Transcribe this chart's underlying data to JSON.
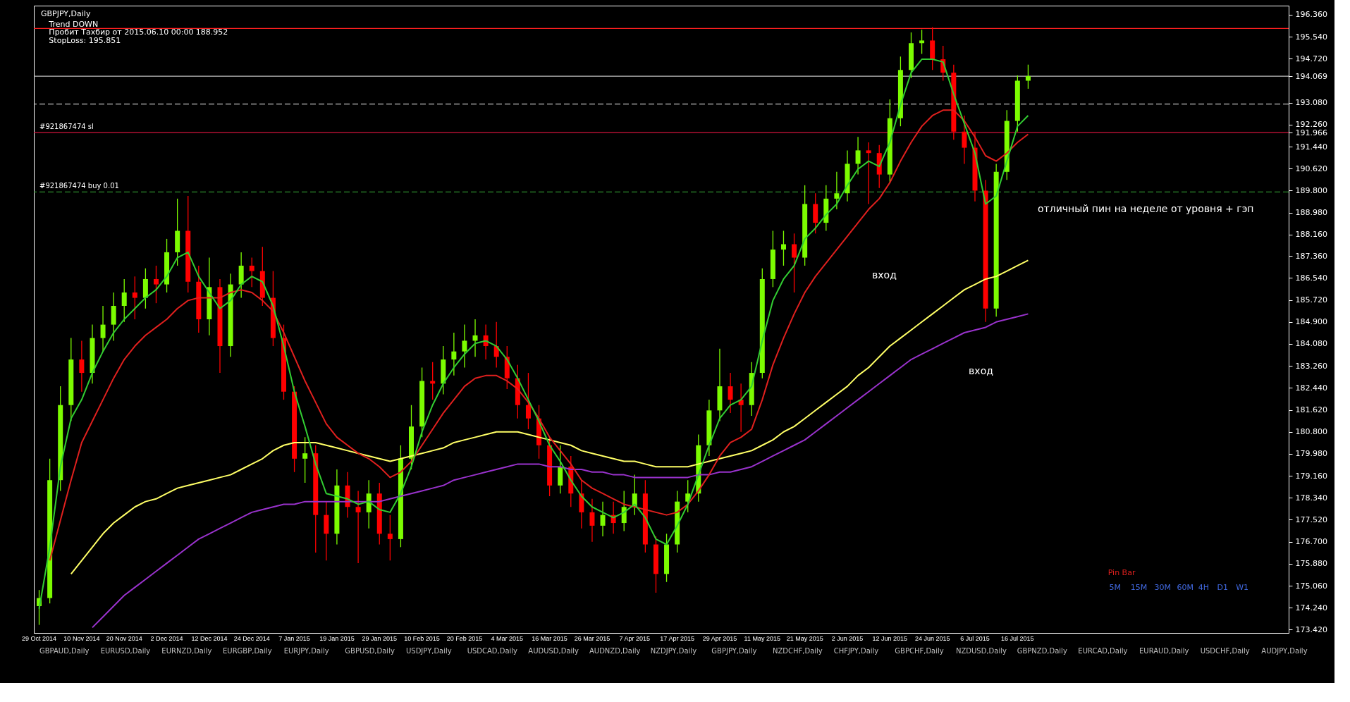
{
  "chart_data": {
    "type": "candlestick",
    "title": "GBPJPY,Daily",
    "categories": [
      "29 Oct 2014",
      null,
      null,
      null,
      "10 Nov 2014",
      null,
      null,
      null,
      "20 Nov 2014",
      null,
      null,
      null,
      "2 Dec 2014",
      null,
      null,
      null,
      "12 Dec 2014",
      null,
      null,
      null,
      "24 Dec 2014",
      null,
      null,
      null,
      "7 Jan 2015",
      null,
      null,
      null,
      "19 Jan 2015",
      null,
      null,
      null,
      "29 Jan 2015",
      null,
      null,
      null,
      "10 Feb 2015",
      null,
      null,
      null,
      "20 Feb 2015",
      null,
      null,
      null,
      "4 Mar 2015",
      null,
      null,
      null,
      "16 Mar 2015",
      null,
      null,
      null,
      "26 Mar 2015",
      null,
      null,
      null,
      "7 Apr 2015",
      null,
      null,
      null,
      "17 Apr 2015",
      null,
      null,
      null,
      "29 Apr 2015",
      null,
      null,
      null,
      "11 May 2015",
      null,
      null,
      null,
      "21 May 2015",
      null,
      null,
      null,
      "2 Jun 2015",
      null,
      null,
      null,
      "12 Jun 2015",
      null,
      null,
      null,
      "24 Jun 2015",
      null,
      null,
      null,
      "6 Jul 2015",
      null,
      null,
      null,
      "16 Jul 2015",
      null
    ],
    "ohlc": [
      [
        174.3,
        174.9,
        173.6,
        174.6
      ],
      [
        174.6,
        179.8,
        174.4,
        179.0
      ],
      [
        179.0,
        182.5,
        178.6,
        181.8
      ],
      [
        181.8,
        184.3,
        181.2,
        183.5
      ],
      [
        183.5,
        184.2,
        182.3,
        183.0
      ],
      [
        183.0,
        184.8,
        182.6,
        184.3
      ],
      [
        184.3,
        185.5,
        183.8,
        184.8
      ],
      [
        184.8,
        186.0,
        184.2,
        185.5
      ],
      [
        185.5,
        186.5,
        184.9,
        186.0
      ],
      [
        186.0,
        186.6,
        185.0,
        185.8
      ],
      [
        185.8,
        186.9,
        185.4,
        186.5
      ],
      [
        186.5,
        187.0,
        185.6,
        186.3
      ],
      [
        186.3,
        188.0,
        186.0,
        187.5
      ],
      [
        187.5,
        189.5,
        187.0,
        188.3
      ],
      [
        188.3,
        189.6,
        186.0,
        186.4
      ],
      [
        186.4,
        187.0,
        184.5,
        185.0
      ],
      [
        185.0,
        187.3,
        184.4,
        186.2
      ],
      [
        186.2,
        186.5,
        183.0,
        184.0
      ],
      [
        184.0,
        186.7,
        183.6,
        186.3
      ],
      [
        186.3,
        187.5,
        185.8,
        187.0
      ],
      [
        187.0,
        187.3,
        186.2,
        186.8
      ],
      [
        186.8,
        187.7,
        185.5,
        185.8
      ],
      [
        185.8,
        186.8,
        184.0,
        184.3
      ],
      [
        184.3,
        184.8,
        182.0,
        182.3
      ],
      [
        182.3,
        182.5,
        179.3,
        179.8
      ],
      [
        179.8,
        180.6,
        178.9,
        180.0
      ],
      [
        180.0,
        180.3,
        176.3,
        177.7
      ],
      [
        177.7,
        178.2,
        176.0,
        177.0
      ],
      [
        177.0,
        179.4,
        176.6,
        178.8
      ],
      [
        178.8,
        179.3,
        177.6,
        178.0
      ],
      [
        178.0,
        178.6,
        175.9,
        177.8
      ],
      [
        177.8,
        179.0,
        177.2,
        178.5
      ],
      [
        178.5,
        178.9,
        176.6,
        177.0
      ],
      [
        177.0,
        177.7,
        176.0,
        176.8
      ],
      [
        176.8,
        180.3,
        176.5,
        179.8
      ],
      [
        179.8,
        181.8,
        179.4,
        181.0
      ],
      [
        181.0,
        183.2,
        180.6,
        182.7
      ],
      [
        182.7,
        183.4,
        182.0,
        182.6
      ],
      [
        182.6,
        184.0,
        182.2,
        183.5
      ],
      [
        183.5,
        184.5,
        182.9,
        183.8
      ],
      [
        183.8,
        184.8,
        183.2,
        184.2
      ],
      [
        184.2,
        185.0,
        183.6,
        184.4
      ],
      [
        184.4,
        184.8,
        183.5,
        184.0
      ],
      [
        184.0,
        184.9,
        183.2,
        183.6
      ],
      [
        183.6,
        184.0,
        182.4,
        182.8
      ],
      [
        182.8,
        183.3,
        181.3,
        181.8
      ],
      [
        181.8,
        183.0,
        180.9,
        181.3
      ],
      [
        181.3,
        181.8,
        179.8,
        180.3
      ],
      [
        180.3,
        180.6,
        178.4,
        178.8
      ],
      [
        178.8,
        180.3,
        178.5,
        179.5
      ],
      [
        179.5,
        179.9,
        178.0,
        178.5
      ],
      [
        178.5,
        179.0,
        177.2,
        177.8
      ],
      [
        177.8,
        178.3,
        176.7,
        177.3
      ],
      [
        177.3,
        178.2,
        176.9,
        177.7
      ],
      [
        177.7,
        178.2,
        177.0,
        177.4
      ],
      [
        177.4,
        178.6,
        177.1,
        178.0
      ],
      [
        178.0,
        179.2,
        177.7,
        178.5
      ],
      [
        178.5,
        179.0,
        176.3,
        176.6
      ],
      [
        176.6,
        176.9,
        174.8,
        175.5
      ],
      [
        175.5,
        177.0,
        175.2,
        176.6
      ],
      [
        176.6,
        178.6,
        176.3,
        178.2
      ],
      [
        178.2,
        179.0,
        177.8,
        178.5
      ],
      [
        178.5,
        180.7,
        178.2,
        180.3
      ],
      [
        180.3,
        182.0,
        179.9,
        181.6
      ],
      [
        181.6,
        183.9,
        181.2,
        182.5
      ],
      [
        182.5,
        183.0,
        181.5,
        182.0
      ],
      [
        182.0,
        182.6,
        180.8,
        181.8
      ],
      [
        181.8,
        183.4,
        181.4,
        183.0
      ],
      [
        183.0,
        186.9,
        182.8,
        186.5
      ],
      [
        186.5,
        188.3,
        186.2,
        187.6
      ],
      [
        187.6,
        188.3,
        187.0,
        187.8
      ],
      [
        187.8,
        188.2,
        186.0,
        187.3
      ],
      [
        187.3,
        190.0,
        187.0,
        189.3
      ],
      [
        189.3,
        189.7,
        188.2,
        188.6
      ],
      [
        188.6,
        190.0,
        188.3,
        189.5
      ],
      [
        189.5,
        190.5,
        189.1,
        189.7
      ],
      [
        189.7,
        191.3,
        189.4,
        190.8
      ],
      [
        190.8,
        191.8,
        190.4,
        191.3
      ],
      [
        191.3,
        191.6,
        189.3,
        191.2
      ],
      [
        191.2,
        191.5,
        189.9,
        190.4
      ],
      [
        190.4,
        193.2,
        190.1,
        192.5
      ],
      [
        192.5,
        194.8,
        192.2,
        194.3
      ],
      [
        194.3,
        195.7,
        194.0,
        195.3
      ],
      [
        195.3,
        195.8,
        194.9,
        195.4
      ],
      [
        195.4,
        195.9,
        194.3,
        194.7
      ],
      [
        194.7,
        195.2,
        193.9,
        194.2
      ],
      [
        194.2,
        194.5,
        191.7,
        192.0
      ],
      [
        192.0,
        192.6,
        190.8,
        191.4
      ],
      [
        191.4,
        192.0,
        189.4,
        189.8
      ],
      [
        189.8,
        190.2,
        184.9,
        185.4
      ],
      [
        185.4,
        190.8,
        185.1,
        190.5
      ],
      [
        190.5,
        192.8,
        190.2,
        192.4
      ],
      [
        192.4,
        194.1,
        192.0,
        193.9
      ],
      [
        193.9,
        194.5,
        193.6,
        194.07
      ]
    ],
    "colors": [
      "#7cfc00",
      "#7cfc00",
      "#7cfc00",
      "#7cfc00",
      "#ff0000",
      "#7cfc00",
      "#7cfc00",
      "#7cfc00",
      "#7cfc00",
      "#ff0000",
      "#7cfc00",
      "#ff0000",
      "#7cfc00",
      "#7cfc00",
      "#ff0000",
      "#ff0000",
      "#7cfc00",
      "#ff0000",
      "#7cfc00",
      "#7cfc00",
      "#ff0000",
      "#ff0000",
      "#ff0000",
      "#ff0000",
      "#ff0000",
      "#7cfc00",
      "#ff0000",
      "#ff0000",
      "#7cfc00",
      "#ff0000",
      "#ff0000",
      "#7cfc00",
      "#ff0000",
      "#ff0000",
      "#7cfc00",
      "#7cfc00",
      "#7cfc00",
      "#ff0000",
      "#7cfc00",
      "#7cfc00",
      "#7cfc00",
      "#7cfc00",
      "#ff0000",
      "#ff0000",
      "#ff0000",
      "#ff0000",
      "#ff0000",
      "#ff0000",
      "#ff0000",
      "#7cfc00",
      "#ff0000",
      "#ff0000",
      "#ff0000",
      "#7cfc00",
      "#ff0000",
      "#7cfc00",
      "#7cfc00",
      "#ff0000",
      "#ff0000",
      "#7cfc00",
      "#7cfc00",
      "#7cfc00",
      "#7cfc00",
      "#7cfc00",
      "#7cfc00",
      "#ff0000",
      "#ff0000",
      "#7cfc00",
      "#7cfc00",
      "#7cfc00",
      "#7cfc00",
      "#ff0000",
      "#7cfc00",
      "#ff0000",
      "#7cfc00",
      "#7cfc00",
      "#7cfc00",
      "#7cfc00",
      "#ff0000",
      "#ff0000",
      "#7cfc00",
      "#7cfc00",
      "#7cfc00",
      "#7cfc00",
      "#ff0000",
      "#ff0000",
      "#ff0000",
      "#ff0000",
      "#ff0000",
      "#ff0000",
      "#7cfc00",
      "#7cfc00",
      "#7cfc00",
      "#7cfc00"
    ],
    "series": [
      {
        "type": "line",
        "color": "#9932cc",
        "values": [
          null,
          null,
          null,
          null,
          null,
          173.5,
          173.9,
          174.3,
          174.7,
          175.0,
          175.3,
          175.6,
          175.9,
          176.2,
          176.5,
          176.8,
          177.0,
          177.2,
          177.4,
          177.6,
          177.8,
          177.9,
          178.0,
          178.1,
          178.1,
          178.2,
          178.2,
          178.2,
          178.2,
          178.2,
          178.2,
          178.2,
          178.2,
          178.3,
          178.4,
          178.5,
          178.6,
          178.7,
          178.8,
          179.0,
          179.1,
          179.2,
          179.3,
          179.4,
          179.5,
          179.6,
          179.6,
          179.6,
          179.5,
          179.5,
          179.4,
          179.4,
          179.3,
          179.3,
          179.2,
          179.2,
          179.1,
          179.1,
          179.1,
          179.1,
          179.1,
          179.1,
          179.2,
          179.2,
          179.3,
          179.3,
          179.4,
          179.5,
          179.7,
          179.9,
          180.1,
          180.3,
          180.5,
          180.8,
          181.1,
          181.4,
          181.7,
          182.0,
          182.3,
          182.6,
          182.9,
          183.2,
          183.5,
          183.7,
          183.9,
          184.1,
          184.3,
          184.5,
          184.6,
          184.7,
          184.9,
          185.0,
          185.1,
          185.2
        ]
      },
      {
        "type": "line",
        "color": "#ffff66",
        "values": [
          null,
          null,
          null,
          175.5,
          176.0,
          176.5,
          177.0,
          177.4,
          177.7,
          178.0,
          178.2,
          178.3,
          178.5,
          178.7,
          178.8,
          178.9,
          179.0,
          179.1,
          179.2,
          179.4,
          179.6,
          179.8,
          180.1,
          180.3,
          180.4,
          180.4,
          180.4,
          180.3,
          180.2,
          180.1,
          180.0,
          179.9,
          179.8,
          179.7,
          179.8,
          179.9,
          180.0,
          180.1,
          180.2,
          180.4,
          180.5,
          180.6,
          180.7,
          180.8,
          180.8,
          180.8,
          180.7,
          180.6,
          180.5,
          180.4,
          180.3,
          180.1,
          180.0,
          179.9,
          179.8,
          179.7,
          179.7,
          179.6,
          179.5,
          179.5,
          179.5,
          179.5,
          179.6,
          179.7,
          179.8,
          179.9,
          180.0,
          180.1,
          180.3,
          180.5,
          180.8,
          181.0,
          181.3,
          181.6,
          181.9,
          182.2,
          182.5,
          182.9,
          183.2,
          183.6,
          184.0,
          184.3,
          184.6,
          184.9,
          185.2,
          185.5,
          185.8,
          186.1,
          186.3,
          186.5,
          186.6,
          186.8,
          187.0,
          187.2
        ]
      },
      {
        "type": "line",
        "color": "#e0201e",
        "values": [
          null,
          176.0,
          177.5,
          179.0,
          180.4,
          181.2,
          182.0,
          182.8,
          183.5,
          184.0,
          184.4,
          184.7,
          185.0,
          185.4,
          185.7,
          185.8,
          185.8,
          185.8,
          186.0,
          186.1,
          186.0,
          185.7,
          185.3,
          184.5,
          183.6,
          182.7,
          181.9,
          181.1,
          180.6,
          180.3,
          180.0,
          179.8,
          179.5,
          179.1,
          179.3,
          179.7,
          180.3,
          180.9,
          181.5,
          182.0,
          182.5,
          182.8,
          182.9,
          182.9,
          182.7,
          182.4,
          181.9,
          181.3,
          180.6,
          180.1,
          179.6,
          179.0,
          178.7,
          178.5,
          178.3,
          178.1,
          178.0,
          177.9,
          177.8,
          177.7,
          177.8,
          178.1,
          178.6,
          179.2,
          179.9,
          180.4,
          180.6,
          180.9,
          182.0,
          183.3,
          184.3,
          185.2,
          186.0,
          186.6,
          187.1,
          187.6,
          188.1,
          188.6,
          189.1,
          189.5,
          190.1,
          190.9,
          191.6,
          192.2,
          192.6,
          192.8,
          192.8,
          192.4,
          191.8,
          191.1,
          190.9,
          191.2,
          191.6,
          191.9
        ]
      },
      {
        "type": "line",
        "color": "#32cd32",
        "values": [
          174.2,
          176.5,
          179.5,
          181.3,
          182.0,
          183.0,
          183.8,
          184.5,
          185.0,
          185.4,
          185.8,
          186.1,
          186.6,
          187.3,
          187.5,
          186.6,
          186.0,
          185.4,
          185.7,
          186.3,
          186.6,
          186.4,
          185.5,
          184.0,
          182.3,
          181.0,
          179.6,
          178.5,
          178.4,
          178.3,
          178.1,
          178.2,
          177.9,
          177.8,
          178.5,
          179.5,
          180.8,
          181.8,
          182.6,
          183.2,
          183.7,
          184.1,
          184.2,
          184.0,
          183.5,
          182.8,
          182.0,
          181.2,
          180.3,
          179.7,
          179.0,
          178.4,
          178.0,
          177.8,
          177.6,
          177.8,
          178.1,
          177.6,
          176.8,
          176.6,
          177.3,
          178.1,
          179.2,
          180.3,
          181.3,
          181.8,
          182.0,
          182.5,
          184.2,
          185.7,
          186.5,
          187.0,
          188.0,
          188.4,
          188.9,
          189.3,
          190.0,
          190.6,
          190.9,
          190.7,
          191.6,
          193.0,
          194.2,
          194.7,
          194.7,
          194.6,
          193.4,
          192.3,
          191.2,
          189.3,
          189.6,
          190.9,
          192.2,
          192.6
        ]
      }
    ],
    "ylim": [
      173.3,
      196.7
    ],
    "yticks": [
      {
        "value": 173.42,
        "label": "173.420"
      },
      {
        "value": 174.24,
        "label": "174.240"
      },
      {
        "value": 175.06,
        "label": "175.060"
      },
      {
        "value": 175.88,
        "label": "175.880"
      },
      {
        "value": 176.7,
        "label": "176.700"
      },
      {
        "value": 177.52,
        "label": "177.520"
      },
      {
        "value": 178.34,
        "label": "178.340"
      },
      {
        "value": 179.16,
        "label": "179.160"
      },
      {
        "value": 179.98,
        "label": "179.980"
      },
      {
        "value": 180.8,
        "label": "180.800"
      },
      {
        "value": 181.62,
        "label": "181.620"
      },
      {
        "value": 182.44,
        "label": "182.440"
      },
      {
        "value": 183.26,
        "label": "183.260"
      },
      {
        "value": 184.08,
        "label": "184.080"
      },
      {
        "value": 184.9,
        "label": "184.900"
      },
      {
        "value": 185.72,
        "label": "185.720"
      },
      {
        "value": 186.54,
        "label": "186.540"
      },
      {
        "value": 187.36,
        "label": "187.360"
      },
      {
        "value": 188.16,
        "label": "188.160"
      },
      {
        "value": 188.98,
        "label": "188.980"
      },
      {
        "value": 189.8,
        "label": "189.800"
      },
      {
        "value": 190.62,
        "label": "190.620"
      },
      {
        "value": 191.44,
        "label": "191.440"
      },
      {
        "value": 191.966,
        "label": "191.966"
      },
      {
        "value": 192.26,
        "label": "192.260"
      },
      {
        "value": 193.08,
        "label": "193.080"
      },
      {
        "value": 194.069,
        "label": "194.069"
      },
      {
        "value": 194.72,
        "label": "194.720"
      },
      {
        "value": 195.54,
        "label": "195.540"
      },
      {
        "value": 196.36,
        "label": "196.360"
      }
    ],
    "ref_lines": [
      {
        "axis": "y",
        "value": 195.851,
        "color": "#ff2020"
      },
      {
        "axis": "y",
        "value": 194.069,
        "color": "#c0c0c0"
      },
      {
        "axis": "y",
        "value": 193.03,
        "color": "#c0c0c0",
        "line_style": "dashed"
      },
      {
        "axis": "y",
        "value": 191.966,
        "label": "#921867474 sl",
        "color": "#d0143c"
      },
      {
        "axis": "y",
        "value": 189.75,
        "label": "#921867474 buy 0.01",
        "color": "#2e8b2e",
        "line_style": "dashed"
      }
    ],
    "annotations": [
      "Trend DOWN",
      "Пробит Тахбир от 2015.06.10 00:00 188.952",
      "StopLoss: 195.851",
      "вход",
      "вход",
      "отличный пин на неделе от уровня + гэп",
      "Pin Bar",
      "5M",
      "15M",
      "30M",
      "60M",
      "4H",
      "D1",
      "W1",
      "GBPAUD,Daily",
      "EURUSD,Daily",
      "EURNZD,Daily",
      "EURGBP,Daily",
      "EURJPY,Daily",
      "GBPUSD,Daily",
      "USDJPY,Daily",
      "USDCAD,Daily",
      "AUDUSD,Daily",
      "AUDNZD,Daily",
      "NZDJPY,Daily",
      "GBPJPY,Daily",
      "NZDCHF,Daily",
      "CHFJPY,Daily",
      "GBPCHF,Daily",
      "NZDUSD,Daily",
      "GBPNZD,Daily",
      "EURCAD,Daily",
      "EURAUD,Daily",
      "USDCHF,Daily",
      "AUDJPY,Daily"
    ],
    "grid": false
  }
}
